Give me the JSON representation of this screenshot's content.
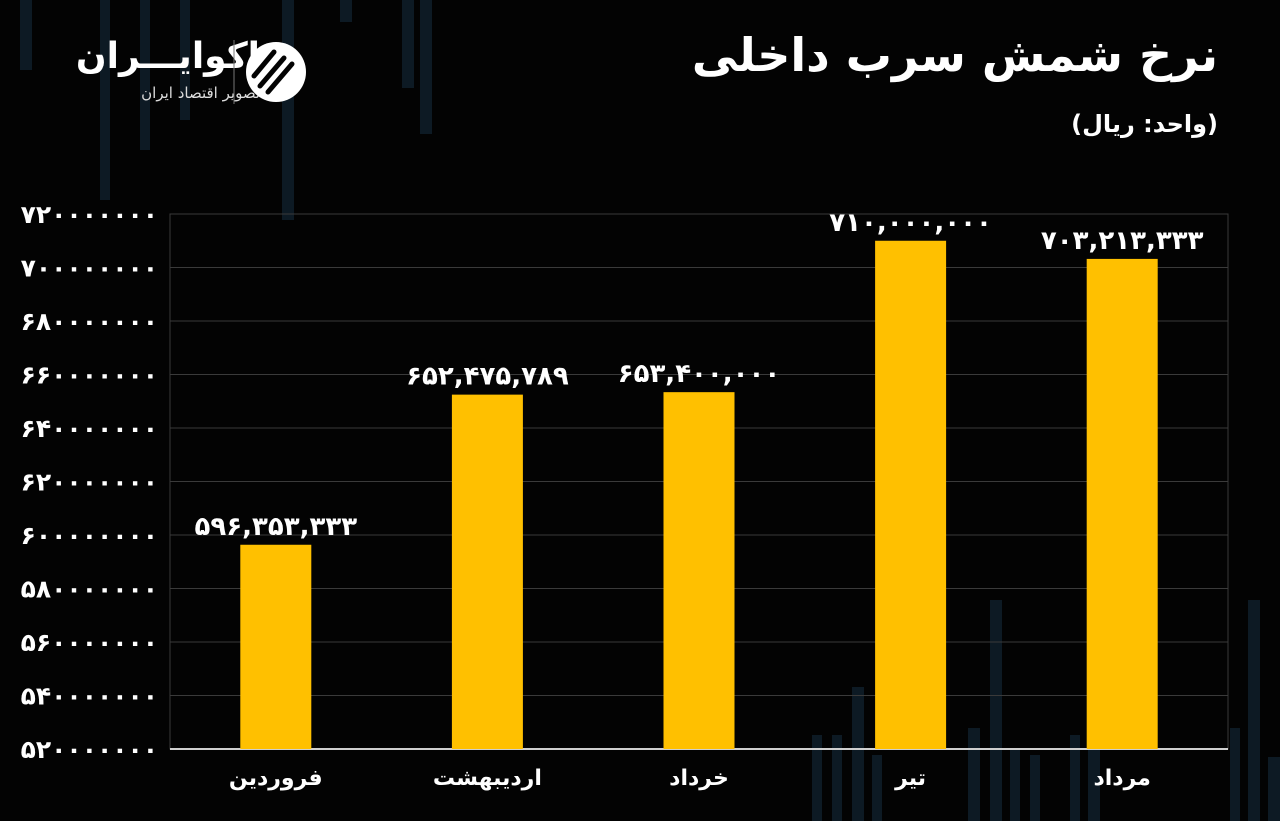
{
  "header": {
    "title": "نرخ شمش سرب داخلی",
    "unit": "(واحد: ریال)"
  },
  "brand": {
    "name": "اکوایـــران",
    "tagline": "تصویر اقتصاد ایران",
    "logo_icon": "ecoiran-logo-icon"
  },
  "colors": {
    "background": "#030303",
    "bar": "#FFC000",
    "text": "#FFFFFF",
    "grid": "#3a3a3a"
  },
  "chart_data": {
    "type": "bar",
    "categories": [
      "فروردین",
      "اردیبهشت",
      "خرداد",
      "تیر",
      "مرداد"
    ],
    "values": [
      596353333,
      652475789,
      653400000,
      710000000,
      703213333
    ],
    "data_labels": [
      "۵۹۶,۳۵۳,۳۳۳",
      "۶۵۲,۴۷۵,۷۸۹",
      "۶۵۳,۴۰۰,۰۰۰",
      "۷۱۰,۰۰۰,۰۰۰",
      "۷۰۳,۲۱۳,۳۳۳"
    ],
    "ylim": [
      520000000,
      720000000
    ],
    "yticks": [
      520000000,
      540000000,
      560000000,
      580000000,
      600000000,
      620000000,
      640000000,
      660000000,
      680000000,
      700000000,
      720000000
    ],
    "ytick_labels": [
      "۵۲۰۰۰۰۰۰۰",
      "۵۴۰۰۰۰۰۰۰",
      "۵۶۰۰۰۰۰۰۰",
      "۵۸۰۰۰۰۰۰۰",
      "۶۰۰۰۰۰۰۰۰",
      "۶۲۰۰۰۰۰۰۰",
      "۶۴۰۰۰۰۰۰۰",
      "۶۶۰۰۰۰۰۰۰",
      "۶۸۰۰۰۰۰۰۰",
      "۷۰۰۰۰۰۰۰۰",
      "۷۲۰۰۰۰۰۰۰"
    ],
    "grid": true,
    "title": "نرخ شمش سرب داخلی",
    "xlabel": "",
    "ylabel": ""
  }
}
